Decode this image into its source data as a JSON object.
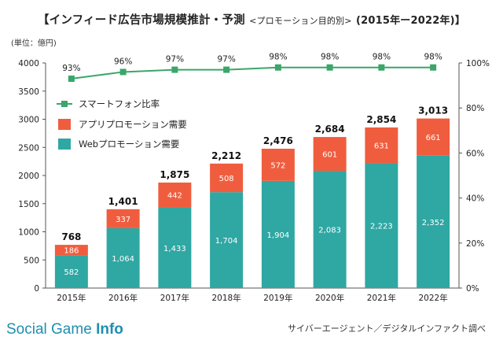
{
  "title": {
    "main": "【インフィード広告市場規模推計・予測",
    "sub": "<プロモーション目的別>",
    "years": "(2015年ー2022年)】"
  },
  "unit_label": "(単位：億円)",
  "source": "サイバーエージェント／デジタルインファクト調べ",
  "brand": {
    "name": "Social Game",
    "suffix": "Info"
  },
  "colors": {
    "web": "#2fa7a3",
    "app": "#f05d3e",
    "line": "#3aa66a"
  },
  "chart_data": {
    "type": "bar",
    "stacked": true,
    "categories": [
      "2015年",
      "2016年",
      "2017年",
      "2018年",
      "2019年",
      "2020年",
      "2021年",
      "2022年"
    ],
    "series": [
      {
        "name": "Webプロモーション需要",
        "values": [
          582,
          1064,
          1433,
          1704,
          1904,
          2083,
          2223,
          2352
        ]
      },
      {
        "name": "アプリプロモーション需要",
        "values": [
          186,
          337,
          442,
          508,
          572,
          601,
          631,
          661
        ]
      }
    ],
    "totals": [
      "768",
      "1,401",
      "1,875",
      "2,212",
      "2,476",
      "2,684",
      "2,854",
      "3,013"
    ],
    "web_labels": [
      "582",
      "1,064",
      "1,433",
      "1,704",
      "1,904",
      "2,083",
      "2,223",
      "2,352"
    ],
    "app_labels": [
      "186",
      "337",
      "442",
      "508",
      "572",
      "601",
      "631",
      "661"
    ],
    "line": {
      "name": "スマートフォン比率",
      "values": [
        93,
        96,
        97,
        97,
        98,
        98,
        98,
        98
      ],
      "labels": [
        "93%",
        "96%",
        "97%",
        "97%",
        "98%",
        "98%",
        "98%",
        "98%"
      ]
    },
    "ylim": [
      0,
      4000
    ],
    "yticks": [
      "0",
      "500",
      "1000",
      "1500",
      "2000",
      "2500",
      "3000",
      "3500",
      "4000"
    ],
    "y2lim": [
      0,
      100
    ],
    "y2ticks": [
      "0%",
      "20%",
      "40%",
      "60%",
      "80%",
      "100%"
    ],
    "legend": "top-left"
  }
}
